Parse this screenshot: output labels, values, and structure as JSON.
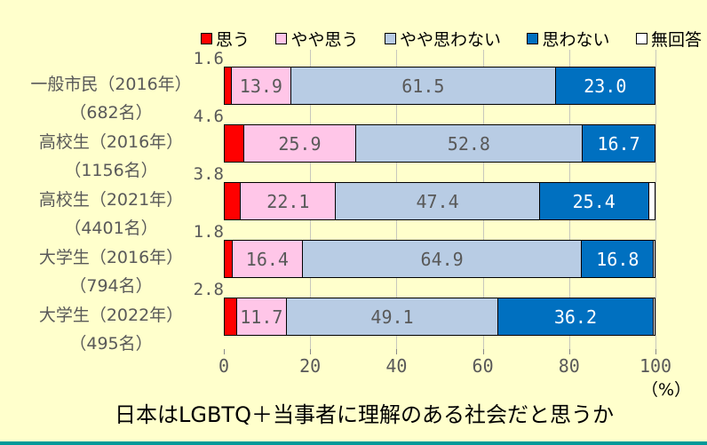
{
  "colors": {
    "background": "#FFFFCC",
    "bottom_accent": "#009999",
    "gridline": "#C8C8BC",
    "gray_text": "#595959",
    "black_text": "#000000"
  },
  "chart_data": {
    "type": "bar",
    "orientation": "horizontal",
    "stacked": true,
    "title": "日本はLGBTQ＋当事者に理解のある社会だと思うか",
    "unit_label": "（%）",
    "xlim": [
      0,
      100
    ],
    "x_ticks": [
      0,
      20,
      40,
      60,
      80,
      100
    ],
    "grid": true,
    "legend_position": "top",
    "categories": [
      {
        "label": "一般市民（2016年）",
        "count_label": "（682名）"
      },
      {
        "label": "高校生（2016年）",
        "count_label": "（1156名）"
      },
      {
        "label": "高校生（2021年）",
        "count_label": "（4401名）"
      },
      {
        "label": "大学生（2016年）",
        "count_label": "（794名）"
      },
      {
        "label": "大学生（2022年）",
        "count_label": "（495名）"
      }
    ],
    "series": [
      {
        "name": "思う",
        "color": "#FF0000",
        "text_color": "#595959",
        "label_position": "above",
        "values": [
          1.6,
          4.6,
          3.8,
          1.8,
          2.8
        ]
      },
      {
        "name": "やや思う",
        "color": "#FFC6E8",
        "text_color": "#595959",
        "label_position": "inside",
        "values": [
          13.9,
          25.9,
          22.1,
          16.4,
          11.7
        ]
      },
      {
        "name": "やや思わない",
        "color": "#B8CCE4",
        "text_color": "#595959",
        "label_position": "inside",
        "values": [
          61.5,
          52.8,
          47.4,
          64.9,
          49.1
        ]
      },
      {
        "name": "思わない",
        "color": "#0070C0",
        "text_color": "#FFFFFF",
        "label_position": "inside",
        "values": [
          23.0,
          16.7,
          25.4,
          16.8,
          36.2
        ]
      },
      {
        "name": "無回答",
        "color": "#FFFFFF",
        "text_color": "#595959",
        "label_position": "none",
        "values": [
          0,
          0,
          1.3,
          0.1,
          0.2
        ]
      }
    ]
  }
}
